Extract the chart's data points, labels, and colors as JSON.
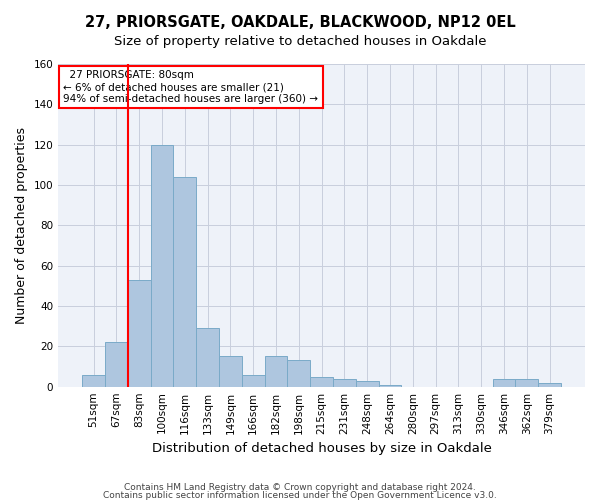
{
  "title1": "27, PRIORSGATE, OAKDALE, BLACKWOOD, NP12 0EL",
  "title2": "Size of property relative to detached houses in Oakdale",
  "xlabel": "Distribution of detached houses by size in Oakdale",
  "ylabel": "Number of detached properties",
  "footer1": "Contains HM Land Registry data © Crown copyright and database right 2024.",
  "footer2": "Contains public sector information licensed under the Open Government Licence v3.0.",
  "annotation_title": "27 PRIORSGATE: 80sqm",
  "annotation_line1": "← 6% of detached houses are smaller (21)",
  "annotation_line2": "94% of semi-detached houses are larger (360) →",
  "bar_labels": [
    "51sqm",
    "67sqm",
    "83sqm",
    "100sqm",
    "116sqm",
    "133sqm",
    "149sqm",
    "166sqm",
    "182sqm",
    "198sqm",
    "215sqm",
    "231sqm",
    "248sqm",
    "264sqm",
    "280sqm",
    "297sqm",
    "313sqm",
    "330sqm",
    "346sqm",
    "362sqm",
    "379sqm"
  ],
  "bar_values": [
    6,
    22,
    53,
    120,
    104,
    29,
    15,
    6,
    15,
    13,
    5,
    4,
    3,
    1,
    0,
    0,
    0,
    0,
    4,
    4,
    2
  ],
  "bar_color": "#aec6df",
  "bar_edge_color": "#7aaac8",
  "red_line_x": 1.5,
  "ylim": [
    0,
    160
  ],
  "yticks": [
    0,
    20,
    40,
    60,
    80,
    100,
    120,
    140,
    160
  ],
  "background_color": "#eef2f9",
  "grid_color": "#c8cedd",
  "title_fontsize": 10.5,
  "subtitle_fontsize": 9.5,
  "axis_label_fontsize": 9,
  "tick_fontsize": 7.5,
  "footer_fontsize": 6.5
}
